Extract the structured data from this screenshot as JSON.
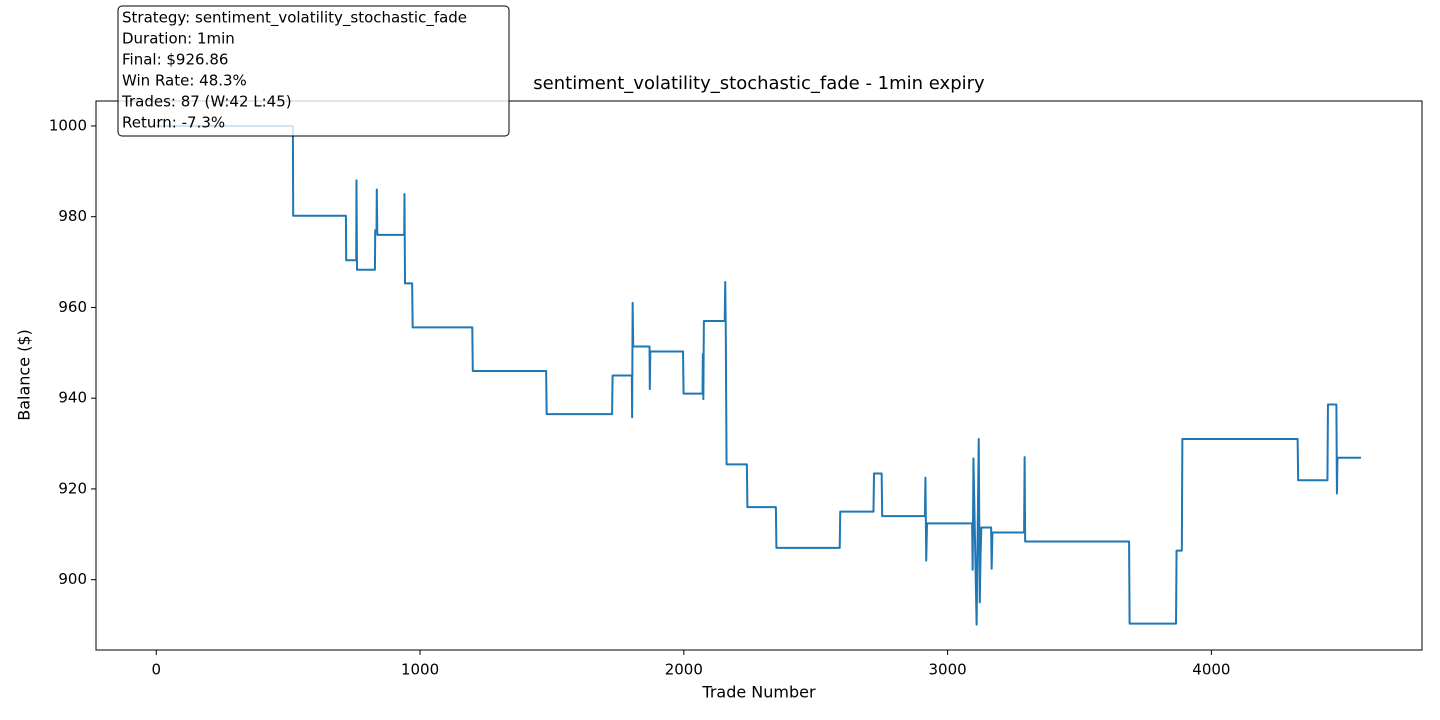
{
  "chart_data": {
    "type": "line",
    "title": "sentiment_volatility_stochastic_fade - 1min expiry",
    "xlabel": "Trade Number",
    "ylabel": "Balance ($)",
    "annotation": [
      "Strategy: sentiment_volatility_stochastic_fade",
      "Duration: 1min",
      "Final: $926.86",
      "Win Rate: 48.3%",
      "Trades: 87 (W:42 L:45)",
      "Return: -7.3%"
    ],
    "xlim": [
      -228.5,
      4798.5
    ],
    "ylim": [
      884.5,
      1005.5
    ],
    "xticks": [
      0,
      1000,
      2000,
      3000,
      4000
    ],
    "yticks": [
      900,
      920,
      940,
      960,
      980,
      1000
    ],
    "grid": false,
    "series": [
      {
        "color": "#1f77b4",
        "x": [
          0,
          518,
          519,
          719,
          720,
          758,
          759,
          761,
          829,
          830,
          835,
          836,
          838,
          940,
          941,
          943,
          970,
          972,
          1198,
          1200,
          1478,
          1480,
          1728,
          1730,
          1803,
          1804,
          1806,
          1808,
          1870,
          1871,
          1873,
          1997,
          1999,
          2071,
          2072,
          2074,
          2076,
          2155,
          2157,
          2159,
          2162,
          2239,
          2241,
          2349,
          2351,
          2591,
          2593,
          2719,
          2721,
          2750,
          2752,
          2914,
          2916,
          2919,
          2922,
          3093,
          3095,
          3098,
          3110,
          3118,
          3122,
          3125,
          3128,
          3165,
          3167,
          3170,
          3290,
          3292,
          3294,
          3688,
          3690,
          3866,
          3868,
          3888,
          3890,
          4327,
          4329,
          4440,
          4442,
          4474,
          4476,
          4478,
          4567
        ],
        "values": [
          1000,
          1000,
          980.2,
          980.2,
          970.4,
          970.4,
          988,
          968.3,
          968.3,
          977,
          977,
          986,
          976,
          976,
          985,
          965.3,
          965.3,
          955.6,
          955.6,
          946,
          946,
          936.5,
          936.5,
          945,
          945,
          935.8,
          961,
          951.4,
          951.4,
          942,
          950.3,
          950.3,
          941,
          941,
          949.7,
          939.8,
          957,
          957,
          965.6,
          955.2,
          925.4,
          925.4,
          916,
          916,
          907,
          907,
          915,
          915,
          923.4,
          923.4,
          914,
          914,
          922.5,
          904.2,
          912.4,
          912.4,
          902.2,
          926.7,
          890.1,
          931,
          895,
          905.5,
          911.5,
          911.5,
          902.4,
          910.4,
          910.4,
          927,
          908.4,
          908.4,
          890.3,
          890.3,
          906.4,
          906.4,
          931,
          931,
          921.9,
          921.9,
          938.6,
          938.6,
          919,
          926.86,
          926.86
        ]
      }
    ]
  }
}
